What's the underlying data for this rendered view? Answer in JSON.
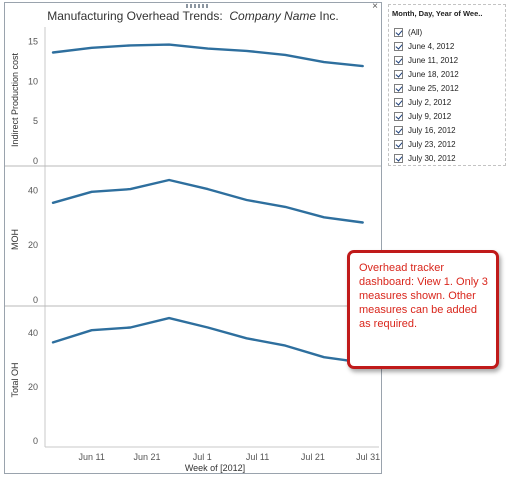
{
  "dashboard": {
    "title_prefix": "Manufacturing Overhead Trends:",
    "title_company": "Company Name",
    "title_suffix": "Inc.",
    "close_glyph": "×"
  },
  "filter": {
    "title": "Month, Day, Year of Wee..",
    "items": [
      "(All)",
      "June 4, 2012",
      "June 11, 2012",
      "June 18, 2012",
      "June 25, 2012",
      "July 2, 2012",
      "July 9, 2012",
      "July 16, 2012",
      "July 23, 2012",
      "July 30, 2012"
    ],
    "checked": [
      true,
      true,
      true,
      true,
      true,
      true,
      true,
      true,
      true,
      true
    ]
  },
  "callout": {
    "text": "Overhead tracker dashboard: View 1. Only 3 measures shown. Other measures can be added as required.",
    "color": "#d9261c"
  },
  "chart_data": {
    "type": "line",
    "x": [
      "2012-06-04",
      "2012-06-11",
      "2012-06-18",
      "2012-06-25",
      "2012-07-02",
      "2012-07-09",
      "2012-07-16",
      "2012-07-23",
      "2012-07-30"
    ],
    "x_tick_labels": [
      "Jun 11",
      "Jun 21",
      "Jul 1",
      "Jul 11",
      "Jul 21",
      "Jul 31"
    ],
    "xlabel": "Week of [2012]",
    "line_color": "#2e6f9e",
    "panes": [
      {
        "ylabel": "Indirect Production cost",
        "ylim": [
          0,
          15.8
        ],
        "yticks": [
          0,
          5,
          10,
          15
        ],
        "values": [
          13.6,
          14.2,
          14.5,
          14.6,
          14.1,
          13.8,
          13.3,
          12.4,
          11.9
        ]
      },
      {
        "ylabel": "MOH",
        "ylim": [
          0,
          46
        ],
        "yticks": [
          0,
          20,
          40
        ],
        "values": [
          35.5,
          39.5,
          40.5,
          43.8,
          40.5,
          36.5,
          34.0,
          30.2,
          28.3
        ]
      },
      {
        "ylabel": "Total OH",
        "ylim": [
          0,
          47
        ],
        "yticks": [
          0,
          20,
          40
        ],
        "values": [
          36.5,
          41.0,
          42.0,
          45.5,
          42.0,
          38.0,
          35.3,
          31.0,
          29.0
        ]
      }
    ]
  }
}
